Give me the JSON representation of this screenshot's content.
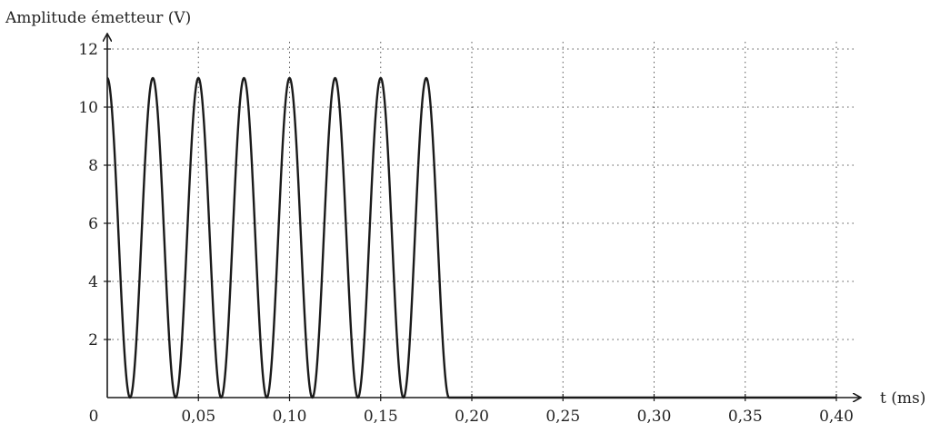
{
  "chart_data": {
    "type": "line",
    "title": "",
    "xlabel": "t (ms)",
    "ylabel": "Amplitude émetteur (V)",
    "origin_label": "0",
    "xlim": [
      0,
      0.4
    ],
    "ylim": [
      0,
      12
    ],
    "grid": true,
    "grid_style": "dotted",
    "x_ticks": [
      0.05,
      0.1,
      0.15,
      0.2,
      0.25,
      0.3,
      0.35,
      0.4
    ],
    "x_tick_labels": [
      "0,05",
      "0,10",
      "0,15",
      "0,20",
      "0,25",
      "0,30",
      "0,35",
      "0,40"
    ],
    "y_ticks": [
      2,
      4,
      6,
      8,
      10,
      12
    ],
    "y_tick_labels": [
      "2",
      "4",
      "6",
      "8",
      "10",
      "12"
    ],
    "series": [
      {
        "color": "#1a1a1a",
        "function": "y = 5.5 * (1 + cos(2*pi*40*t)) for t in [0, 0.1875] ms, then y = 0",
        "amplitude_peak": 11,
        "period_ms": 0.025,
        "burst_end_ms": 0.1875,
        "peaks": [
          {
            "x": 0.0,
            "y": 11
          },
          {
            "x": 0.025,
            "y": 11
          },
          {
            "x": 0.05,
            "y": 11
          },
          {
            "x": 0.075,
            "y": 11
          },
          {
            "x": 0.1,
            "y": 11
          },
          {
            "x": 0.125,
            "y": 11
          },
          {
            "x": 0.15,
            "y": 11
          },
          {
            "x": 0.175,
            "y": 11
          }
        ],
        "troughs": [
          {
            "x": 0.0125,
            "y": 0
          },
          {
            "x": 0.0375,
            "y": 0
          },
          {
            "x": 0.0625,
            "y": 0
          },
          {
            "x": 0.0875,
            "y": 0
          },
          {
            "x": 0.1125,
            "y": 0
          },
          {
            "x": 0.1375,
            "y": 0
          },
          {
            "x": 0.1625,
            "y": 0
          },
          {
            "x": 0.1875,
            "y": 0
          }
        ]
      }
    ]
  }
}
